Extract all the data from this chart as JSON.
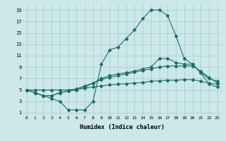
{
  "xlabel": "Humidex (Indice chaleur)",
  "background_color": "#cce8e8",
  "grid_color": "#aacfcf",
  "line_color": "#1a6e6a",
  "xlim": [
    -0.5,
    23.5
  ],
  "ylim": [
    0.5,
    20
  ],
  "yticks": [
    1,
    3,
    5,
    7,
    9,
    11,
    13,
    15,
    17,
    19
  ],
  "xtick_labels": [
    "0",
    "1",
    "2",
    "3",
    "4",
    "5",
    "6",
    "7",
    "8",
    "9",
    "10",
    "11",
    "12",
    "13",
    "14",
    "15",
    "16",
    "17",
    "18",
    "19",
    "20",
    "21",
    "22",
    "23"
  ],
  "curve1_x": [
    0,
    1,
    2,
    3,
    4,
    5,
    6,
    7,
    8,
    9,
    10,
    11,
    12,
    13,
    14,
    15,
    16,
    17,
    18,
    19,
    20,
    21,
    22,
    23
  ],
  "curve1_y": [
    5.0,
    4.5,
    4.0,
    3.5,
    3.0,
    1.5,
    1.5,
    1.5,
    3.0,
    9.5,
    12.0,
    12.5,
    14.0,
    15.5,
    17.5,
    19.0,
    19.0,
    18.0,
    14.5,
    10.5,
    9.5,
    8.0,
    6.0,
    5.5
  ],
  "curve2_x": [
    0,
    1,
    2,
    3,
    4,
    5,
    6,
    7,
    8,
    9,
    10,
    11,
    12,
    13,
    14,
    15,
    16,
    17,
    18,
    19,
    20,
    21,
    22,
    23
  ],
  "curve2_y": [
    5.0,
    4.5,
    4.0,
    4.0,
    4.5,
    4.8,
    5.0,
    5.5,
    6.2,
    7.0,
    7.5,
    7.8,
    8.0,
    8.3,
    8.7,
    9.0,
    10.5,
    10.5,
    9.8,
    9.5,
    9.5,
    8.0,
    7.0,
    6.5
  ],
  "curve3_x": [
    0,
    1,
    2,
    3,
    4,
    5,
    6,
    7,
    8,
    9,
    10,
    11,
    12,
    13,
    14,
    15,
    16,
    17,
    18,
    19,
    20,
    21,
    22,
    23
  ],
  "curve3_y": [
    5.0,
    4.5,
    4.0,
    4.0,
    4.5,
    4.8,
    5.2,
    5.7,
    6.2,
    6.8,
    7.2,
    7.5,
    7.8,
    8.1,
    8.4,
    8.7,
    9.0,
    9.2,
    9.2,
    9.2,
    9.2,
    8.3,
    7.2,
    6.2
  ],
  "curve4_x": [
    0,
    1,
    2,
    3,
    4,
    5,
    6,
    7,
    8,
    9,
    10,
    11,
    12,
    13,
    14,
    15,
    16,
    17,
    18,
    19,
    20,
    21,
    22,
    23
  ],
  "curve4_y": [
    5.0,
    5.0,
    5.0,
    5.0,
    5.0,
    5.0,
    5.1,
    5.3,
    5.5,
    5.7,
    5.9,
    6.0,
    6.1,
    6.2,
    6.3,
    6.5,
    6.6,
    6.7,
    6.7,
    6.8,
    6.8,
    6.5,
    6.2,
    6.0
  ],
  "marker": "D",
  "markersize": 2.0,
  "linewidth": 0.8
}
